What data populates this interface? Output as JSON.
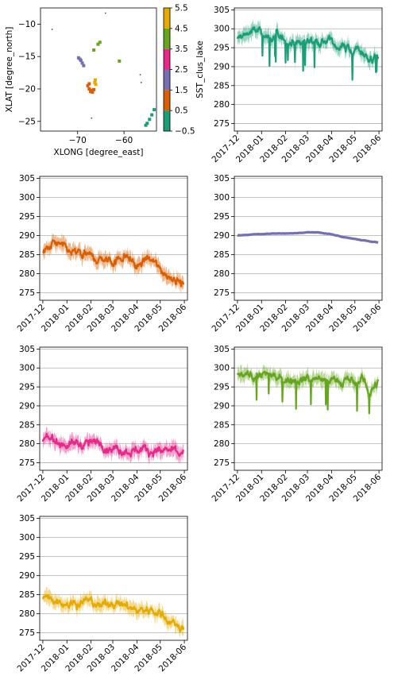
{
  "map": {
    "xlabel": "XLONG [degree_east]",
    "ylabel": "XLAT [degree_north]",
    "xticks": [
      -70,
      -60
    ],
    "yticks": [
      -10,
      -15,
      -20,
      -25
    ],
    "xlim": [
      -78,
      -53
    ],
    "ylim": [
      -26.5,
      -7.5
    ],
    "colorbar": {
      "label": "SST_clus_lake",
      "ticks": [
        "5.5",
        "4.5",
        "3.5",
        "2.5",
        "1.5",
        "0.5",
        "-0.5"
      ],
      "colors": [
        "#1b9e77",
        "#d95f02",
        "#7570b3",
        "#e7298a",
        "#66a61e",
        "#e6ab02"
      ]
    },
    "clusters": [
      {
        "cluster": 0,
        "color": "#1b9e77",
        "points": [
          [
            -53.5,
            -23.2
          ],
          [
            -54.0,
            -24.0
          ],
          [
            -54.5,
            -24.7
          ],
          [
            -55.0,
            -25.3
          ],
          [
            -55.3,
            -25.6
          ]
        ]
      },
      {
        "cluster": 1,
        "color": "#d95f02",
        "points": [
          [
            -67.5,
            -20.0
          ],
          [
            -67.0,
            -20.2
          ],
          [
            -66.5,
            -20.1
          ],
          [
            -67.8,
            -19.5
          ],
          [
            -67.2,
            -20.4
          ],
          [
            -66.8,
            -20.5
          ],
          [
            -67.5,
            -19.2
          ]
        ]
      },
      {
        "cluster": 2,
        "color": "#7570b3",
        "points": [
          [
            -69.8,
            -15.2
          ],
          [
            -69.3,
            -15.6
          ],
          [
            -69.0,
            -16.0
          ],
          [
            -68.7,
            -16.4
          ],
          [
            -69.5,
            -15.4
          ]
        ]
      },
      {
        "cluster": 3,
        "color": "#e7298a",
        "points": []
      },
      {
        "cluster": 4,
        "color": "#66a61e",
        "points": [
          [
            -65.2,
            -12.8
          ],
          [
            -65.6,
            -13.1
          ],
          [
            -66.5,
            -14.0
          ],
          [
            -61.0,
            -15.7
          ]
        ]
      },
      {
        "cluster": 5,
        "color": "#e6ab02",
        "points": [
          [
            -66.2,
            -18.6
          ],
          [
            -66.3,
            -19.0
          ],
          [
            -66.1,
            -19.3
          ]
        ]
      }
    ]
  },
  "panels": [
    {
      "cluster": 0,
      "color": "#1b9e77",
      "ylabel": "SST_clus_lake"
    },
    {
      "cluster": 1,
      "color": "#d95f02",
      "ylabel": ""
    },
    {
      "cluster": 2,
      "color": "#7570b3",
      "ylabel": ""
    },
    {
      "cluster": 3,
      "color": "#e7298a",
      "ylabel": ""
    },
    {
      "cluster": 4,
      "color": "#66a61e",
      "ylabel": ""
    },
    {
      "cluster": 5,
      "color": "#e6ab02",
      "ylabel": ""
    }
  ],
  "chart_data": [
    {
      "type": "scatter",
      "xlabel": "XLONG [degree_east]",
      "ylabel": "XLAT [degree_north]",
      "xlim": [
        -78,
        -53
      ],
      "ylim": [
        -26.5,
        -7.5
      ],
      "colorbar_label": "SST_clus_lake",
      "colorbar_ticks": [
        -0.5,
        0.5,
        1.5,
        2.5,
        3.5,
        4.5,
        5.5
      ]
    },
    {
      "type": "line",
      "x_ticks": [
        "2017-12",
        "2018-01",
        "2018-02",
        "2018-03",
        "2018-04",
        "2018-05",
        "2018-06"
      ],
      "y_ticks": [
        275,
        280,
        285,
        290,
        295,
        300,
        305
      ],
      "ylim": [
        273,
        305.5
      ],
      "grid": "horizontal",
      "series": [
        {
          "cluster": 0,
          "x": [
            "2017-12-01",
            "2017-12-15",
            "2018-01-01",
            "2018-01-15",
            "2018-02-01",
            "2018-02-15",
            "2018-03-01",
            "2018-03-15",
            "2018-04-01",
            "2018-04-15",
            "2018-05-01",
            "2018-05-10",
            "2018-05-20",
            "2018-06-01"
          ],
          "values": [
            297,
            299,
            299,
            297,
            297,
            296,
            297,
            297,
            296,
            295,
            294,
            294,
            292,
            292
          ]
        },
        {
          "cluster": 1,
          "x": [
            "2017-12-01",
            "2017-12-15",
            "2018-01-01",
            "2018-01-15",
            "2018-02-01",
            "2018-02-15",
            "2018-03-01",
            "2018-03-15",
            "2018-04-01",
            "2018-04-15",
            "2018-05-01",
            "2018-05-10",
            "2018-05-20",
            "2018-06-01"
          ],
          "values": [
            285,
            288,
            286,
            285,
            284,
            284,
            283,
            285,
            282,
            284,
            281,
            280,
            279,
            277
          ]
        },
        {
          "cluster": 2,
          "x": [
            "2017-12-01",
            "2017-12-15",
            "2018-01-01",
            "2018-01-15",
            "2018-02-01",
            "2018-02-15",
            "2018-03-01",
            "2018-03-15",
            "2018-04-01",
            "2018-04-15",
            "2018-05-01",
            "2018-05-10",
            "2018-05-20",
            "2018-06-01"
          ],
          "values": [
            290,
            290.2,
            290.4,
            290.5,
            290.5,
            290.6,
            290.8,
            290.8,
            290.3,
            289.6,
            289.1,
            288.8,
            288.5,
            288.1
          ]
        },
        {
          "cluster": 3,
          "x": [
            "2017-12-01",
            "2017-12-15",
            "2018-01-01",
            "2018-01-15",
            "2018-02-01",
            "2018-02-15",
            "2018-03-01",
            "2018-03-15",
            "2018-04-01",
            "2018-04-15",
            "2018-05-01",
            "2018-05-10",
            "2018-05-20",
            "2018-06-01"
          ],
          "values": [
            281,
            281,
            280,
            280,
            280,
            280,
            279,
            278.5,
            278.5,
            278.5,
            278,
            278,
            278,
            277.5
          ]
        },
        {
          "cluster": 4,
          "x": [
            "2017-12-01",
            "2017-12-15",
            "2018-01-01",
            "2018-01-15",
            "2018-02-01",
            "2018-02-15",
            "2018-03-01",
            "2018-03-15",
            "2018-04-01",
            "2018-04-15",
            "2018-05-01",
            "2018-05-10",
            "2018-05-20",
            "2018-06-01"
          ],
          "values": [
            298,
            298,
            298,
            298,
            297.5,
            297.5,
            297.5,
            296.5,
            297,
            296.5,
            296,
            297,
            294,
            296
          ]
        },
        {
          "cluster": 5,
          "x": [
            "2017-12-01",
            "2017-12-15",
            "2018-01-01",
            "2018-01-15",
            "2018-02-01",
            "2018-02-15",
            "2018-03-01",
            "2018-03-15",
            "2018-04-01",
            "2018-04-15",
            "2018-05-01",
            "2018-05-10",
            "2018-05-20",
            "2018-06-01"
          ],
          "values": [
            284,
            284,
            283,
            283,
            283,
            282,
            283,
            282,
            281,
            281,
            280,
            279,
            277,
            276
          ]
        }
      ]
    }
  ]
}
